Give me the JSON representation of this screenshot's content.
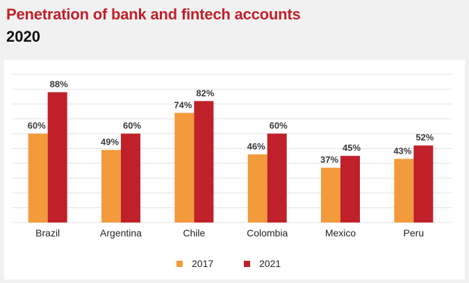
{
  "header": {
    "title": "Penetration of bank and fintech accounts",
    "subtitle": "2020"
  },
  "colors": {
    "series_2017": "#f39a3c",
    "series_2021": "#c0202a",
    "grid": "#e2e2e2",
    "title": "#c0202a"
  },
  "chart_data": {
    "type": "bar",
    "title": "Penetration of bank and fintech accounts",
    "subtitle": "2020",
    "categories": [
      "Brazil",
      "Argentina",
      "Chile",
      "Colombia",
      "Mexico",
      "Peru"
    ],
    "series": [
      {
        "name": "2017",
        "values": [
          60,
          49,
          74,
          46,
          37,
          43
        ],
        "labels": [
          "60%",
          "49%",
          "74%",
          "46%",
          "37%",
          "43%"
        ]
      },
      {
        "name": "2021",
        "values": [
          88,
          60,
          82,
          60,
          45,
          52
        ],
        "labels": [
          "88%",
          "60%",
          "82%",
          "60%",
          "45%",
          "52%"
        ]
      }
    ],
    "ylim": [
      0,
      100
    ],
    "grid": true,
    "legend": "bottom",
    "xlabel": "",
    "ylabel": ""
  }
}
